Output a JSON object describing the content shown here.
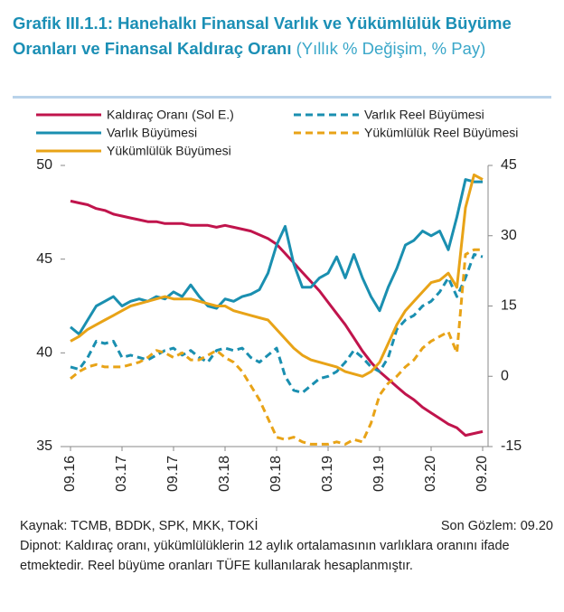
{
  "chart_data": {
    "type": "line",
    "title": "Grafik III.1.1: Hanehalkı Finansal Varlık ve Yükümlülük Büyüme Oranları ve Finansal Kaldıraç Oranı",
    "subtitle": "(Yıllık % Değişim, % Pay)",
    "categories": [
      "09.16",
      null,
      null,
      null,
      null,
      null,
      "03.17",
      null,
      null,
      null,
      null,
      null,
      "09.17",
      null,
      null,
      null,
      null,
      null,
      "03.18",
      null,
      null,
      null,
      null,
      null,
      "09.18",
      null,
      null,
      null,
      null,
      null,
      "03.19",
      null,
      null,
      null,
      null,
      null,
      "09.19",
      null,
      null,
      null,
      null,
      null,
      "03.20",
      null,
      null,
      null,
      null,
      null,
      "09.20"
    ],
    "ylim": [
      35,
      50
    ],
    "yticks": [
      35,
      40,
      45,
      50
    ],
    "y2lim": [
      -15,
      45
    ],
    "y2ticks": [
      -15,
      0,
      15,
      30,
      45
    ],
    "series": [
      {
        "name": "Kaldıraç Oranı (Sol E.)",
        "color": "#c0144c",
        "dash": false,
        "axis": "y",
        "values": [
          48.1,
          48.0,
          47.9,
          47.7,
          47.6,
          47.4,
          47.3,
          47.2,
          47.1,
          47.0,
          47.0,
          46.9,
          46.9,
          46.9,
          46.8,
          46.8,
          46.8,
          46.7,
          46.8,
          46.7,
          46.6,
          46.5,
          46.3,
          46.1,
          45.8,
          45.3,
          44.8,
          44.3,
          43.8,
          43.3,
          42.7,
          42.1,
          41.5,
          40.8,
          40.1,
          39.5,
          39.0,
          38.6,
          38.2,
          37.8,
          37.5,
          37.1,
          36.8,
          36.5,
          36.2,
          36.0,
          35.6,
          35.7,
          35.8
        ]
      },
      {
        "name": "Varlık Reel Büyümesi",
        "color": "#1a8fb0",
        "dash": true,
        "axis": "y2",
        "values": [
          2,
          1.5,
          4,
          7.5,
          7,
          7.5,
          4,
          4.5,
          4,
          3.5,
          4.5,
          5.5,
          6,
          4.5,
          5.5,
          4,
          3,
          5.5,
          6,
          5.5,
          6,
          4,
          3,
          4.5,
          6,
          0,
          -3,
          -3.5,
          -2,
          -0.5,
          0,
          1,
          3,
          5.5,
          4,
          2,
          1,
          4,
          10,
          12,
          13,
          15,
          16,
          18,
          21,
          17,
          21,
          26,
          25.5
        ]
      },
      {
        "name": "Varlık Büyümesi",
        "color": "#1a8fb0",
        "dash": false,
        "axis": "y2",
        "values": [
          10.5,
          9,
          12,
          15,
          16,
          17,
          15,
          16,
          16.5,
          16,
          17,
          16.5,
          18,
          17,
          19.5,
          17,
          15,
          14.5,
          16.5,
          16,
          17,
          17.5,
          18.5,
          22,
          28,
          32,
          24,
          19,
          19,
          21,
          22,
          25.5,
          21,
          26,
          21,
          17,
          14,
          19,
          23,
          28,
          29,
          31,
          30,
          31,
          27,
          34,
          42,
          41.5,
          41.5
        ]
      },
      {
        "name": "Yükümlülük Reel Büyümesi",
        "color": "#e8a317",
        "dash": true,
        "axis": "y2",
        "values": [
          -0.5,
          1,
          2,
          2.5,
          2,
          2,
          2,
          2.5,
          3,
          4,
          5.5,
          5,
          4,
          5,
          3.5,
          3.5,
          4.5,
          5.5,
          4,
          3,
          1,
          -2,
          -5,
          -9,
          -13,
          -13.5,
          -13,
          -14,
          -14.5,
          -14.5,
          -14.5,
          -14,
          -14.5,
          -13.5,
          -14,
          -10,
          -4,
          -1.5,
          0,
          2,
          3.5,
          6,
          7.5,
          8.5,
          9.5,
          5,
          26,
          27,
          27
        ]
      },
      {
        "name": "Yükümlülük Büyümesi",
        "color": "#e8a317",
        "dash": false,
        "axis": "y2",
        "values": [
          7.5,
          8.5,
          10,
          11,
          12,
          13,
          14,
          15,
          15.5,
          16,
          16.5,
          17,
          16.5,
          16.5,
          16.5,
          16,
          15.5,
          15,
          15,
          14,
          13.5,
          13,
          12.5,
          12,
          10,
          8,
          6,
          4.5,
          3.5,
          3,
          2.5,
          2,
          1,
          0.5,
          0,
          1,
          3,
          7,
          11,
          14,
          16,
          18,
          20,
          20.5,
          22,
          19,
          36,
          43,
          42
        ]
      }
    ],
    "source": "Kaynak: TCMB, BDDK, SPK, MKK, TOKİ",
    "last_observation": "Son Gözlem: 09.20",
    "note": "Dipnot: Kaldıraç oranı, yükümlülüklerin 12 aylık ortalamasının varlıklara oranını ifade etmektedir. Reel büyüme oranları TÜFE kullanılarak hesaplanmıştır."
  }
}
